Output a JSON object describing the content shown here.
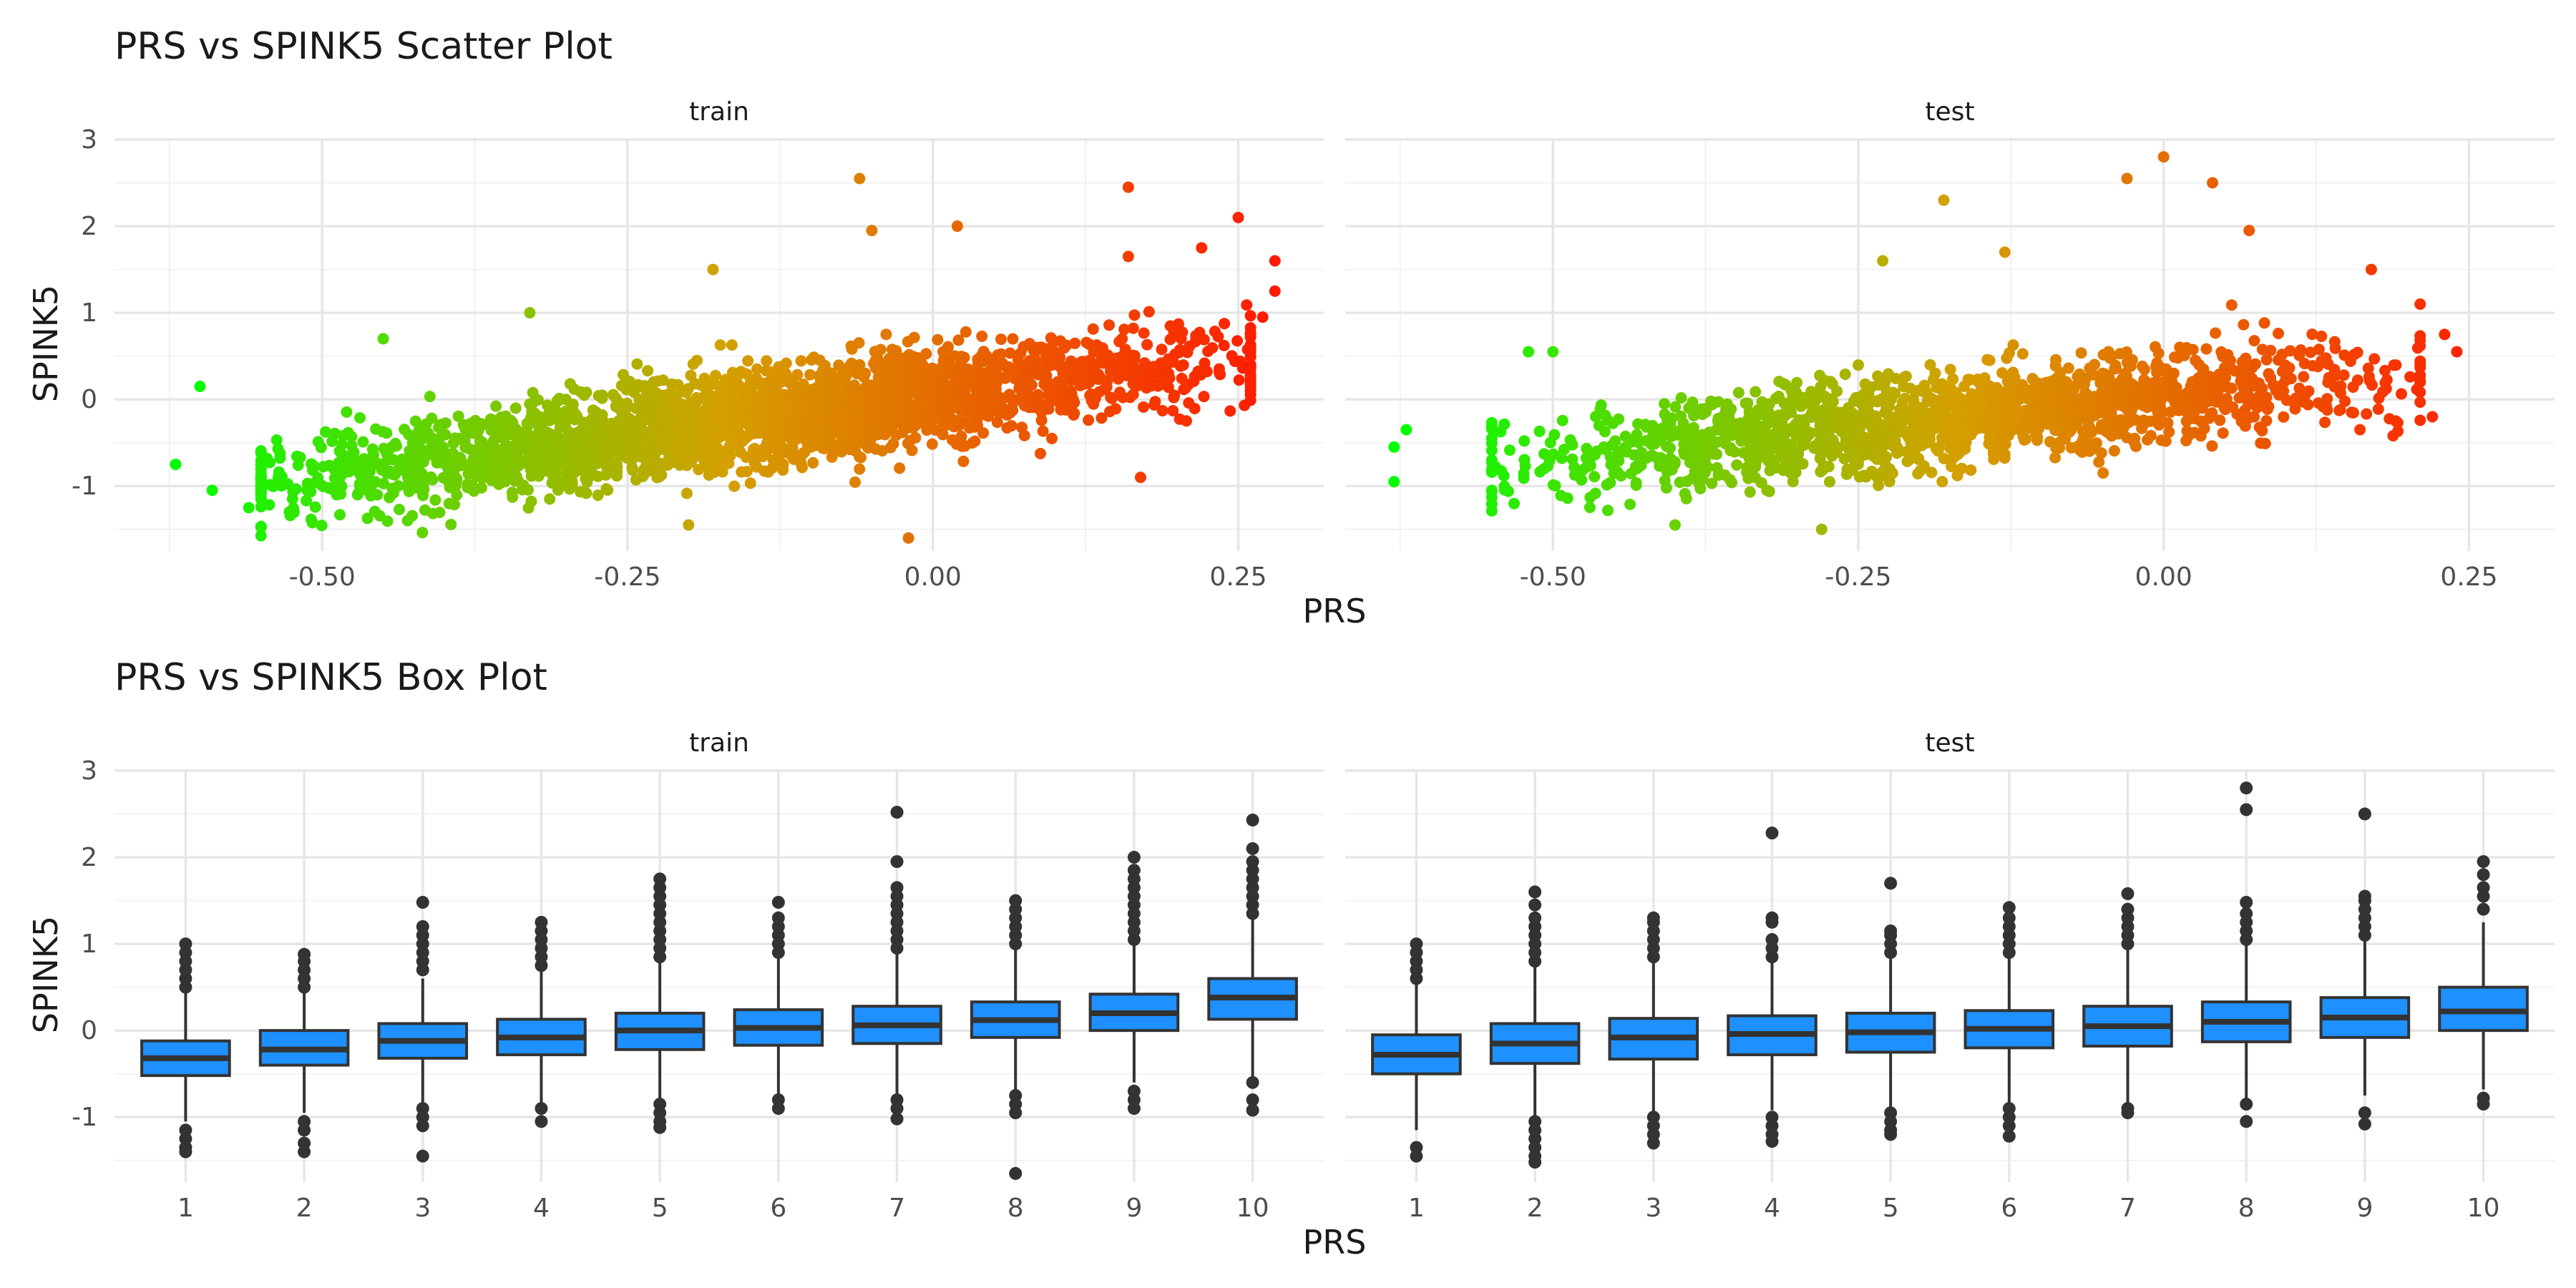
{
  "chart_data": [
    {
      "type": "scatter",
      "title": "PRS vs SPINK5 Scatter Plot",
      "xlabel": "PRS",
      "ylabel": "SPINK5",
      "xlim": [
        -0.67,
        0.32
      ],
      "ylim": [
        -1.75,
        3.0
      ],
      "x_ticks": [
        -0.5,
        -0.25,
        0.0,
        0.25
      ],
      "x_tick_labels": [
        "-0.50",
        "-0.25",
        "0.00",
        "0.25"
      ],
      "y_ticks": [
        -1,
        0,
        1,
        2,
        3
      ],
      "y_tick_labels": [
        "-1",
        "0",
        "1",
        "2",
        "3"
      ],
      "grid": true,
      "color_scale": {
        "low": "#00ff00",
        "mid": "#d4a000",
        "high": "#ff1a00",
        "range": [
          -0.62,
          0.28
        ],
        "mapped_to": "PRS"
      },
      "approx_regression": {
        "slope": 1.95,
        "intercept": 0.05,
        "residual_sd": 0.28
      },
      "panels": [
        {
          "name": "train",
          "points": [
            {
              "x": -0.62,
              "y": -0.75
            },
            {
              "x": -0.6,
              "y": 0.15
            },
            {
              "x": -0.59,
              "y": -1.05
            },
            {
              "x": -0.56,
              "y": -1.25
            },
            {
              "x": -0.45,
              "y": 0.7
            },
            {
              "x": -0.43,
              "y": -1.4
            },
            {
              "x": -0.33,
              "y": 1.0
            },
            {
              "x": -0.2,
              "y": -1.45
            },
            {
              "x": -0.18,
              "y": 1.5
            },
            {
              "x": -0.06,
              "y": 2.55
            },
            {
              "x": -0.05,
              "y": 1.95
            },
            {
              "x": -0.02,
              "y": -1.6
            },
            {
              "x": 0.02,
              "y": 2.0
            },
            {
              "x": 0.16,
              "y": 2.45
            },
            {
              "x": 0.16,
              "y": 1.65
            },
            {
              "x": 0.17,
              "y": -0.9
            },
            {
              "x": 0.22,
              "y": 1.75
            },
            {
              "x": 0.25,
              "y": 2.1
            },
            {
              "x": 0.27,
              "y": 0.95
            },
            {
              "x": 0.28,
              "y": 1.6
            },
            {
              "x": 0.28,
              "y": 1.25
            }
          ],
          "point_cloud": {
            "approx_count": 2600,
            "x_range": [
              -0.55,
              0.26
            ]
          }
        },
        {
          "name": "test",
          "points": [
            {
              "x": -0.63,
              "y": -0.95
            },
            {
              "x": -0.63,
              "y": -0.55
            },
            {
              "x": -0.62,
              "y": -0.35
            },
            {
              "x": -0.52,
              "y": 0.55
            },
            {
              "x": -0.5,
              "y": 0.55
            },
            {
              "x": -0.4,
              "y": -1.45
            },
            {
              "x": -0.28,
              "y": -1.5
            },
            {
              "x": -0.23,
              "y": 1.6
            },
            {
              "x": -0.18,
              "y": 2.3
            },
            {
              "x": -0.13,
              "y": 1.7
            },
            {
              "x": -0.03,
              "y": 2.55
            },
            {
              "x": 0.0,
              "y": 2.8
            },
            {
              "x": 0.04,
              "y": 2.5
            },
            {
              "x": 0.07,
              "y": 1.95
            },
            {
              "x": 0.17,
              "y": 1.5
            },
            {
              "x": 0.21,
              "y": 1.1
            },
            {
              "x": 0.23,
              "y": 0.75
            },
            {
              "x": 0.24,
              "y": 0.55
            },
            {
              "x": 0.22,
              "y": -0.2
            },
            {
              "x": 0.19,
              "y": -0.25
            }
          ],
          "point_cloud": {
            "approx_count": 1600,
            "x_range": [
              -0.55,
              0.21
            ]
          }
        }
      ]
    },
    {
      "type": "box",
      "title": "PRS vs SPINK5 Box Plot",
      "xlabel": "PRS",
      "ylabel": "SPINK5",
      "categories": [
        "1",
        "2",
        "3",
        "4",
        "5",
        "6",
        "7",
        "8",
        "9",
        "10"
      ],
      "ylim": [
        -1.75,
        3.0
      ],
      "y_ticks": [
        -1,
        0,
        1,
        2,
        3
      ],
      "y_tick_labels": [
        "-1",
        "0",
        "1",
        "2",
        "3"
      ],
      "grid": true,
      "box_color": "#1e90ff",
      "panels": [
        {
          "name": "train",
          "boxes": [
            {
              "q1": -0.52,
              "median": -0.32,
              "q3": -0.12,
              "whisker_low": -1.05,
              "whisker_high": 0.45,
              "outliers": [
                0.5,
                0.6,
                0.7,
                0.8,
                0.9,
                1.0,
                -1.15,
                -1.25,
                -1.35,
                -1.4
              ]
            },
            {
              "q1": -0.4,
              "median": -0.22,
              "q3": 0.0,
              "whisker_low": -0.95,
              "whisker_high": 0.45,
              "outliers": [
                0.5,
                0.6,
                0.7,
                0.8,
                0.88,
                -1.05,
                -1.15,
                -1.3,
                -1.4
              ]
            },
            {
              "q1": -0.32,
              "median": -0.12,
              "q3": 0.08,
              "whisker_low": -0.85,
              "whisker_high": 0.6,
              "outliers": [
                0.7,
                0.8,
                0.9,
                1.0,
                1.1,
                1.2,
                1.48,
                -0.9,
                -1.0,
                -1.1,
                -1.45
              ]
            },
            {
              "q1": -0.28,
              "median": -0.08,
              "q3": 0.13,
              "whisker_low": -0.85,
              "whisker_high": 0.7,
              "outliers": [
                0.75,
                0.85,
                0.95,
                1.05,
                1.15,
                1.25,
                -0.9,
                -1.05
              ]
            },
            {
              "q1": -0.22,
              "median": 0.0,
              "q3": 0.2,
              "whisker_low": -0.8,
              "whisker_high": 0.8,
              "outliers": [
                0.85,
                0.95,
                1.05,
                1.15,
                1.25,
                1.35,
                1.45,
                1.55,
                1.65,
                1.75,
                -0.85,
                -0.95,
                -1.05,
                -1.12
              ]
            },
            {
              "q1": -0.17,
              "median": 0.03,
              "q3": 0.24,
              "whisker_low": -0.75,
              "whisker_high": 0.85,
              "outliers": [
                0.9,
                1.0,
                1.1,
                1.2,
                1.3,
                1.48,
                -0.8,
                -0.9
              ]
            },
            {
              "q1": -0.15,
              "median": 0.06,
              "q3": 0.28,
              "whisker_low": -0.75,
              "whisker_high": 0.9,
              "outliers": [
                0.95,
                1.05,
                1.15,
                1.25,
                1.35,
                1.45,
                1.55,
                1.65,
                1.95,
                2.52,
                -0.8,
                -0.9,
                -1.02
              ]
            },
            {
              "q1": -0.08,
              "median": 0.12,
              "q3": 0.33,
              "whisker_low": -0.7,
              "whisker_high": 0.95,
              "outliers": [
                1.0,
                1.1,
                1.2,
                1.3,
                1.4,
                1.5,
                -0.75,
                -0.85,
                -0.95,
                -1.65
              ]
            },
            {
              "q1": 0.0,
              "median": 0.2,
              "q3": 0.42,
              "whisker_low": -0.6,
              "whisker_high": 1.0,
              "outliers": [
                1.05,
                1.15,
                1.25,
                1.35,
                1.45,
                1.55,
                1.65,
                1.75,
                1.85,
                2.0,
                -0.7,
                -0.8,
                -0.9
              ]
            },
            {
              "q1": 0.13,
              "median": 0.38,
              "q3": 0.6,
              "whisker_low": -0.55,
              "whisker_high": 1.3,
              "outliers": [
                1.35,
                1.45,
                1.55,
                1.65,
                1.75,
                1.85,
                1.95,
                2.1,
                2.43,
                -0.6,
                -0.8,
                -0.92
              ]
            }
          ]
        },
        {
          "name": "test",
          "boxes": [
            {
              "q1": -0.5,
              "median": -0.28,
              "q3": -0.05,
              "whisker_low": -1.15,
              "whisker_high": 0.55,
              "outliers": [
                0.6,
                0.7,
                0.8,
                0.9,
                1.0,
                -1.35,
                -1.45
              ]
            },
            {
              "q1": -0.38,
              "median": -0.15,
              "q3": 0.08,
              "whisker_low": -1.0,
              "whisker_high": 0.75,
              "outliers": [
                0.8,
                0.9,
                1.0,
                1.1,
                1.2,
                1.3,
                1.45,
                1.6,
                -1.05,
                -1.15,
                -1.25,
                -1.35,
                -1.45,
                -1.52
              ]
            },
            {
              "q1": -0.33,
              "median": -0.08,
              "q3": 0.14,
              "whisker_low": -0.95,
              "whisker_high": 0.8,
              "outliers": [
                0.85,
                0.95,
                1.05,
                1.15,
                1.25,
                1.3,
                -1.0,
                -1.1,
                -1.2,
                -1.3
              ]
            },
            {
              "q1": -0.28,
              "median": -0.04,
              "q3": 0.17,
              "whisker_low": -0.92,
              "whisker_high": 0.8,
              "outliers": [
                0.85,
                0.95,
                1.05,
                1.25,
                1.3,
                2.28,
                -1.0,
                -1.1,
                -1.2,
                -1.28
              ]
            },
            {
              "q1": -0.25,
              "median": -0.02,
              "q3": 0.2,
              "whisker_low": -0.9,
              "whisker_high": 0.85,
              "outliers": [
                0.9,
                1.0,
                1.1,
                1.15,
                1.7,
                -0.95,
                -1.05,
                -1.15,
                -1.2
              ]
            },
            {
              "q1": -0.2,
              "median": 0.02,
              "q3": 0.23,
              "whisker_low": -0.85,
              "whisker_high": 0.85,
              "outliers": [
                0.9,
                1.0,
                1.1,
                1.2,
                1.3,
                1.42,
                -0.9,
                -1.0,
                -1.1,
                -1.22
              ]
            },
            {
              "q1": -0.18,
              "median": 0.05,
              "q3": 0.28,
              "whisker_low": -0.85,
              "whisker_high": 0.95,
              "outliers": [
                1.0,
                1.1,
                1.2,
                1.3,
                1.4,
                1.58,
                -0.9,
                -0.95
              ]
            },
            {
              "q1": -0.13,
              "median": 0.1,
              "q3": 0.33,
              "whisker_low": -0.8,
              "whisker_high": 1.0,
              "outliers": [
                1.05,
                1.15,
                1.25,
                1.35,
                1.48,
                2.55,
                2.8,
                -0.85,
                -1.05
              ]
            },
            {
              "q1": -0.08,
              "median": 0.15,
              "q3": 0.38,
              "whisker_low": -0.75,
              "whisker_high": 1.05,
              "outliers": [
                1.1,
                1.2,
                1.3,
                1.4,
                1.5,
                1.55,
                2.5,
                -0.95,
                -1.08
              ]
            },
            {
              "q1": 0.0,
              "median": 0.22,
              "q3": 0.5,
              "whisker_low": -0.68,
              "whisker_high": 1.25,
              "outliers": [
                1.4,
                1.55,
                1.65,
                1.8,
                1.95,
                -0.78,
                -0.85
              ]
            }
          ]
        }
      ]
    }
  ]
}
